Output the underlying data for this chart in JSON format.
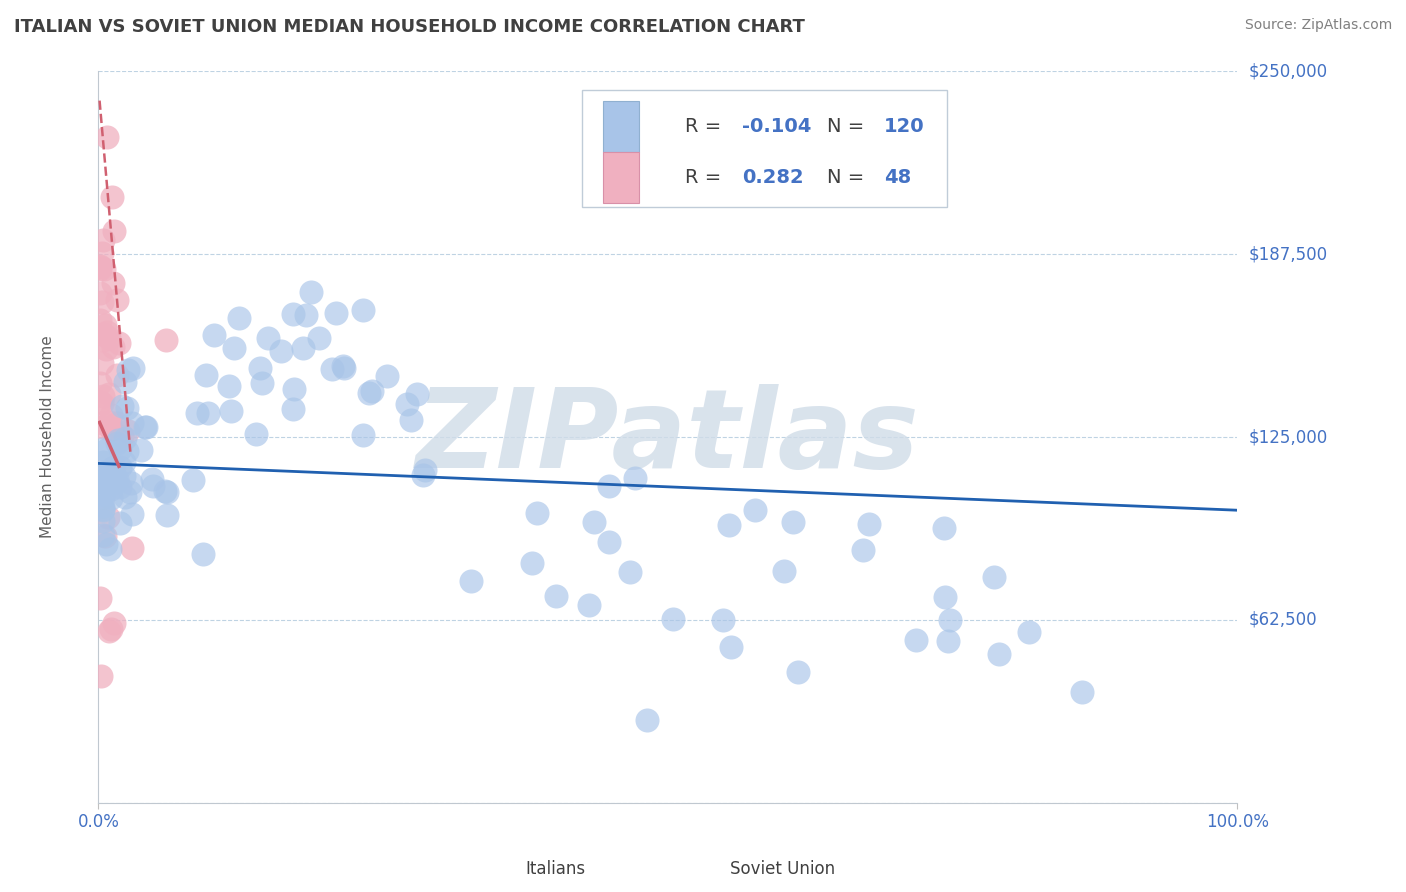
{
  "title": "ITALIAN VS SOVIET UNION MEDIAN HOUSEHOLD INCOME CORRELATION CHART",
  "source": "Source: ZipAtlas.com",
  "ylabel": "Median Household Income",
  "xlim": [
    0,
    1
  ],
  "ylim": [
    0,
    250000
  ],
  "yticks": [
    0,
    62500,
    125000,
    187500,
    250000
  ],
  "ytick_labels": [
    "",
    "$62,500",
    "$125,000",
    "$187,500",
    "$250,000"
  ],
  "background_color": "#ffffff",
  "grid_color": "#b8cfe0",
  "title_color": "#404040",
  "axis_label_color": "#606060",
  "tick_label_color": "#4472c4",
  "watermark": "ZIPatlas",
  "watermark_color": "#d0dce8",
  "italians_scatter_color": "#a8c4e8",
  "soviet_scatter_color": "#f0b0c0",
  "trend_line_color": "#2060b0",
  "soviet_trend_color": "#d06070",
  "legend_blue": "#4472c4",
  "legend_black": "#404040",
  "italians_label": "Italians",
  "soviet_label": "Soviet Union",
  "italians_R": "-0.104",
  "italians_N": "120",
  "soviet_R": "0.282",
  "soviet_N": "48"
}
